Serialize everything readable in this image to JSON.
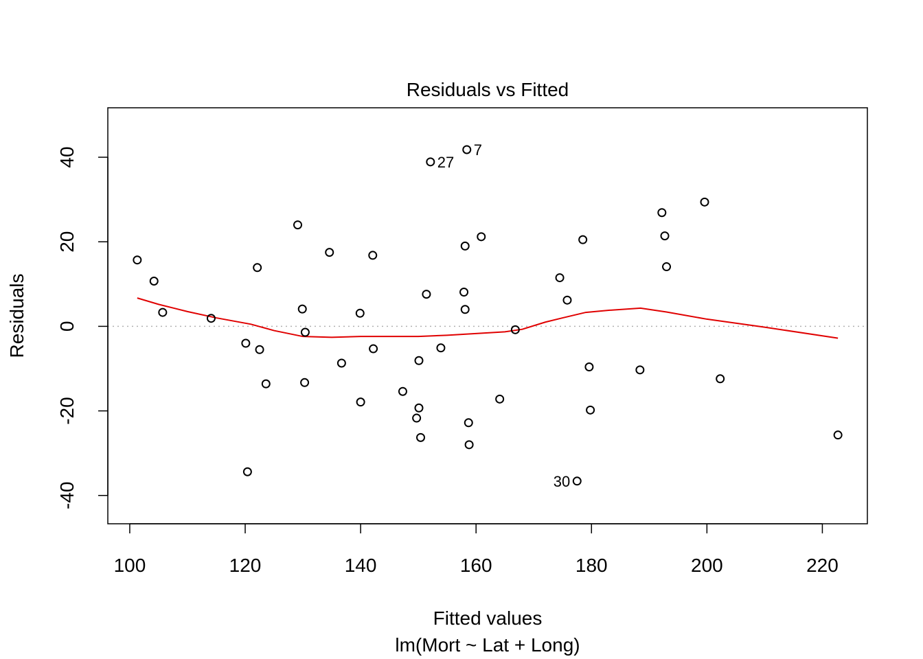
{
  "chart_data": {
    "type": "scatter",
    "title": "Residuals vs Fitted",
    "xlabel": "Fitted values",
    "subtitle": "lm(Mort ~ Lat + Long)",
    "ylabel": "Residuals",
    "xlim": [
      96.2,
      227.8
    ],
    "ylim": [
      -46.7,
      51.7
    ],
    "x_ticks": [
      100,
      120,
      140,
      160,
      180,
      200,
      220
    ],
    "y_ticks": [
      -40,
      -20,
      0,
      20,
      40
    ],
    "x_tick_labels": [
      "100",
      "120",
      "140",
      "160",
      "180",
      "200",
      "220"
    ],
    "y_tick_labels": [
      "-40",
      "-20",
      "0",
      "20",
      "40"
    ],
    "grid": false,
    "zero_line": 0,
    "points": [
      {
        "x": 101.3,
        "y": 15.7
      },
      {
        "x": 104.2,
        "y": 10.7
      },
      {
        "x": 105.7,
        "y": 3.3
      },
      {
        "x": 114.1,
        "y": 1.9
      },
      {
        "x": 120.1,
        "y": -4.0
      },
      {
        "x": 120.4,
        "y": -34.4
      },
      {
        "x": 122.1,
        "y": 13.9
      },
      {
        "x": 122.5,
        "y": -5.5
      },
      {
        "x": 123.6,
        "y": -13.6
      },
      {
        "x": 129.1,
        "y": 24.0
      },
      {
        "x": 129.9,
        "y": 4.1
      },
      {
        "x": 130.3,
        "y": -13.3
      },
      {
        "x": 130.4,
        "y": -1.4
      },
      {
        "x": 134.6,
        "y": 17.5
      },
      {
        "x": 136.7,
        "y": -8.7
      },
      {
        "x": 139.9,
        "y": 3.1
      },
      {
        "x": 140.0,
        "y": -17.9
      },
      {
        "x": 142.1,
        "y": 16.8
      },
      {
        "x": 142.2,
        "y": -5.3
      },
      {
        "x": 147.3,
        "y": -15.4
      },
      {
        "x": 149.7,
        "y": -21.7
      },
      {
        "x": 150.1,
        "y": -8.1
      },
      {
        "x": 150.1,
        "y": -19.3
      },
      {
        "x": 150.4,
        "y": -26.3
      },
      {
        "x": 151.4,
        "y": 7.6
      },
      {
        "x": 152.1,
        "y": 38.9
      },
      {
        "x": 153.9,
        "y": -5.1
      },
      {
        "x": 157.9,
        "y": 8.1
      },
      {
        "x": 158.1,
        "y": 19.0
      },
      {
        "x": 158.1,
        "y": 4.0
      },
      {
        "x": 158.4,
        "y": 41.8
      },
      {
        "x": 158.7,
        "y": -22.8
      },
      {
        "x": 158.8,
        "y": -28.0
      },
      {
        "x": 160.9,
        "y": 21.2
      },
      {
        "x": 164.1,
        "y": -17.2
      },
      {
        "x": 166.8,
        "y": -0.8
      },
      {
        "x": 174.5,
        "y": 11.5
      },
      {
        "x": 175.8,
        "y": 6.2
      },
      {
        "x": 177.5,
        "y": -36.6
      },
      {
        "x": 178.5,
        "y": 20.5
      },
      {
        "x": 179.6,
        "y": -9.6
      },
      {
        "x": 179.8,
        "y": -19.8
      },
      {
        "x": 188.4,
        "y": -10.3
      },
      {
        "x": 192.2,
        "y": 26.9
      },
      {
        "x": 192.7,
        "y": 21.4
      },
      {
        "x": 193.0,
        "y": 14.1
      },
      {
        "x": 199.6,
        "y": 29.4
      },
      {
        "x": 202.3,
        "y": -12.4
      },
      {
        "x": 222.7,
        "y": -25.7
      }
    ],
    "labeled_points": [
      {
        "label": "7",
        "x": 158.4,
        "y": 41.8,
        "side": "right"
      },
      {
        "label": "27",
        "x": 152.1,
        "y": 38.9,
        "side": "right"
      },
      {
        "label": "30",
        "x": 177.5,
        "y": -36.6,
        "side": "left"
      }
    ],
    "smooth_line": {
      "color": "#e00000",
      "x": [
        101.3,
        105,
        110,
        115,
        121,
        125,
        130,
        135,
        140,
        145,
        150,
        155,
        160,
        165,
        168,
        172,
        175,
        179,
        183,
        188.5,
        193,
        200,
        210,
        222.7
      ],
      "y": [
        6.7,
        5.2,
        3.5,
        2.0,
        0.5,
        -1.0,
        -2.4,
        -2.6,
        -2.4,
        -2.4,
        -2.4,
        -2.1,
        -1.7,
        -1.3,
        -0.7,
        1.0,
        2.0,
        3.3,
        3.8,
        4.3,
        3.4,
        1.7,
        -0.2,
        -2.8
      ]
    },
    "point_color": "#000000",
    "zero_line_color": "#b0b0b0"
  }
}
